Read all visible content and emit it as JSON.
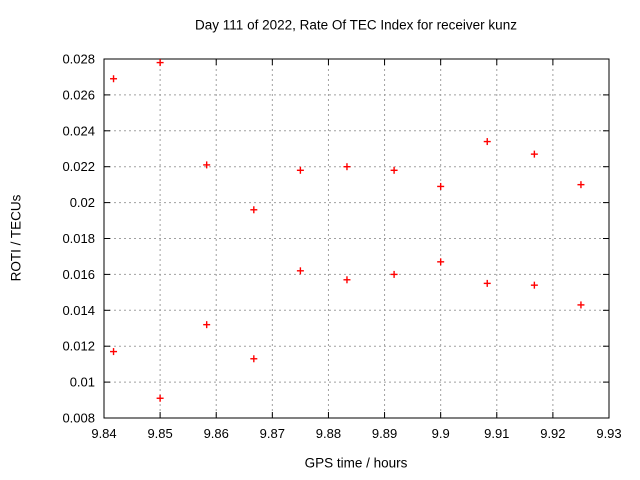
{
  "page": {
    "background": "#ffffff"
  },
  "chart_data": {
    "type": "scatter",
    "title": "Day 111 of 2022, Rate Of TEC Index for receiver kunz",
    "xlabel": "GPS time / hours",
    "ylabel": "ROTI / TECUs",
    "xlim": [
      9.84,
      9.93
    ],
    "ylim": [
      0.008,
      0.028
    ],
    "xticks": {
      "values": [
        9.84,
        9.85,
        9.86,
        9.87,
        9.88,
        9.89,
        9.9,
        9.91,
        9.92,
        9.93
      ],
      "labels": [
        "9.84",
        "9.85",
        "9.86",
        "9.87",
        "9.88",
        "9.89",
        "9.9",
        "9.91",
        "9.92",
        "9.93"
      ]
    },
    "yticks": {
      "values": [
        0.008,
        0.01,
        0.012,
        0.014,
        0.016,
        0.018,
        0.02,
        0.022,
        0.024,
        0.026,
        0.028
      ],
      "labels": [
        "0.008",
        "0.01",
        "0.012",
        "0.014",
        "0.016",
        "0.018",
        "0.02",
        "0.022",
        "0.024",
        "0.026",
        "0.028"
      ]
    },
    "grid": true,
    "legend": "none",
    "colors": {
      "marker": "#ff0000",
      "grid": "#a0a0a0",
      "axis": "#000000",
      "text": "#000000"
    },
    "marker": {
      "shape": "plus",
      "size": 7
    },
    "series": [
      {
        "name": "ROTI",
        "points": [
          [
            9.8417,
            0.0269
          ],
          [
            9.8417,
            0.0117
          ],
          [
            9.85,
            0.0278
          ],
          [
            9.85,
            0.0091
          ],
          [
            9.8583,
            0.0221
          ],
          [
            9.8583,
            0.0132
          ],
          [
            9.8667,
            0.0196
          ],
          [
            9.8667,
            0.0113
          ],
          [
            9.875,
            0.0218
          ],
          [
            9.875,
            0.0162
          ],
          [
            9.8833,
            0.022
          ],
          [
            9.8833,
            0.0157
          ],
          [
            9.8917,
            0.0218
          ],
          [
            9.8917,
            0.016
          ],
          [
            9.9,
            0.0209
          ],
          [
            9.9,
            0.0167
          ],
          [
            9.9083,
            0.0234
          ],
          [
            9.9083,
            0.0155
          ],
          [
            9.9167,
            0.0227
          ],
          [
            9.9167,
            0.0154
          ],
          [
            9.925,
            0.021
          ],
          [
            9.925,
            0.0143
          ]
        ]
      }
    ]
  }
}
